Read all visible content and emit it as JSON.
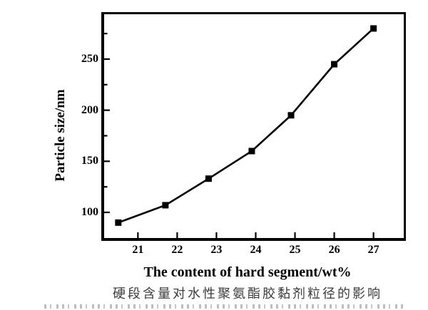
{
  "figure": {
    "background_color": "#ffffff",
    "axis_color": "#000000"
  },
  "chart_data": {
    "type": "line",
    "title": "",
    "xlabel": "The content of hard segment/wt%",
    "ylabel": "Particle size/nm",
    "caption_zh": "硬段含量对水性聚氨酯胶黏剂粒径的影响",
    "x": [
      20.5,
      21.7,
      22.8,
      23.9,
      24.9,
      26.0,
      27.0
    ],
    "y": [
      90,
      107,
      133,
      160,
      195,
      245,
      280
    ],
    "xlim": [
      20.14,
      27.77
    ],
    "ylim": [
      74.9,
      293.9
    ],
    "x_ticks": [
      21,
      22,
      23,
      24,
      25,
      26,
      27
    ],
    "y_ticks_major": [
      100,
      150,
      200,
      250
    ],
    "y_ticks_minor": [
      125,
      175,
      225,
      275
    ],
    "marker": "square",
    "marker_size": 9,
    "line_color": "#000000",
    "marker_color": "#000000",
    "line_width": 2.6,
    "grid": false,
    "legend": "none"
  }
}
